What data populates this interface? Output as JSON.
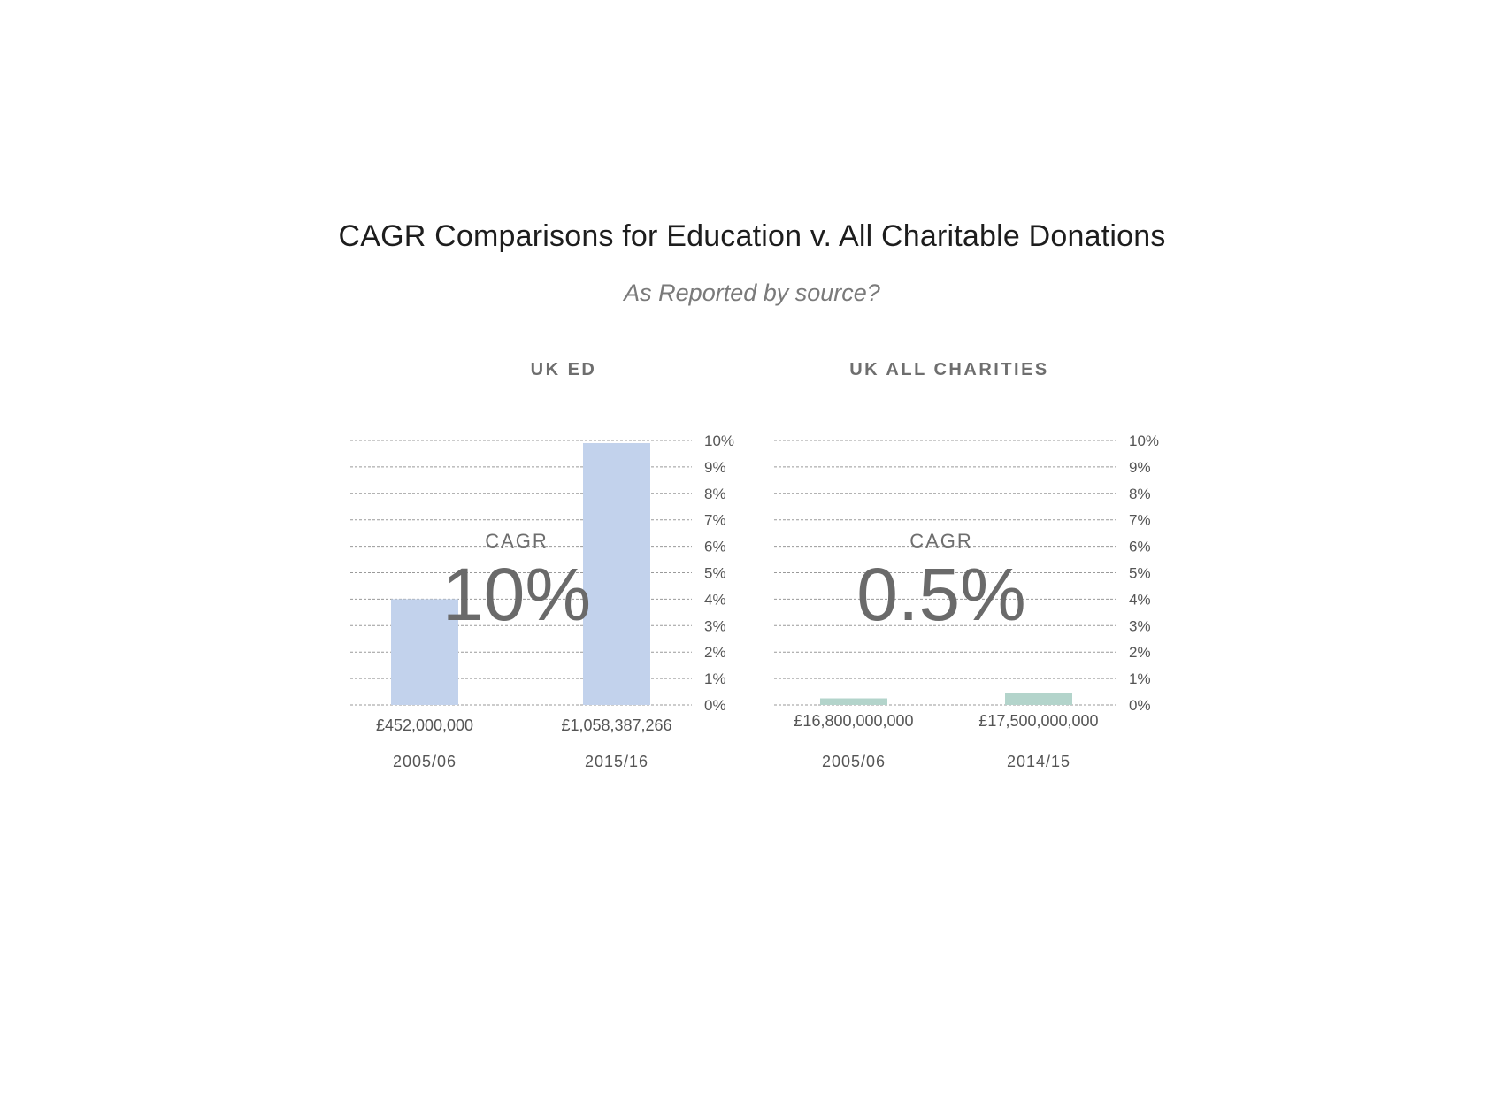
{
  "title": "CAGR Comparisons for Education v. All Charitable Donations",
  "subtitle": "As Reported by source?",
  "chart_data": [
    {
      "type": "bar",
      "title": "UK ED",
      "categories": [
        "2005/06",
        "2015/16"
      ],
      "values": [
        4,
        9.9
      ],
      "value_labels": [
        "£452,000,000",
        "£1,058,387,266"
      ],
      "ylim": [
        0,
        10
      ],
      "yticks": [
        "0%",
        "1%",
        "2%",
        "3%",
        "4%",
        "5%",
        "6%",
        "7%",
        "8%",
        "9%",
        "10%"
      ],
      "y_axis_side": "right",
      "grid": true,
      "bar_color": "#c2d2ec",
      "annotation_label": "CAGR",
      "annotation_value": "10%"
    },
    {
      "type": "bar",
      "title": "UK ALL CHARITIES",
      "categories": [
        "2005/06",
        "2014/15"
      ],
      "values": [
        0.25,
        0.45
      ],
      "value_labels": [
        "£16,800,000,000",
        "£17,500,000,000"
      ],
      "ylim": [
        0,
        10
      ],
      "yticks": [
        "0%",
        "1%",
        "2%",
        "3%",
        "4%",
        "5%",
        "6%",
        "7%",
        "8%",
        "9%",
        "10%"
      ],
      "y_axis_side": "right",
      "grid": true,
      "bar_color": "#b3d4cb",
      "annotation_label": "CAGR",
      "annotation_value": "0.5%"
    }
  ]
}
